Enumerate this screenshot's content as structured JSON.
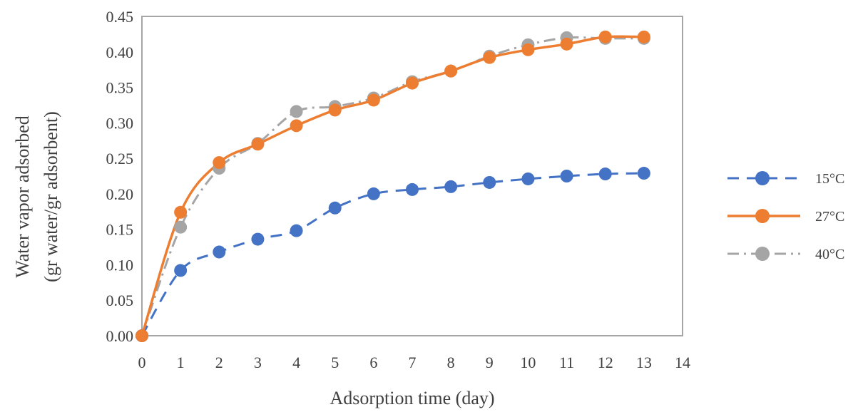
{
  "chart_data": {
    "type": "line",
    "xlabel": "Adsorption time (day)",
    "ylabel_lines": [
      "Water vapor adsorbed",
      "(gr water/gr adsorbent)"
    ],
    "xlim": [
      0,
      14
    ],
    "ylim": [
      0,
      0.45
    ],
    "x_ticks": [
      "0",
      "1",
      "2",
      "3",
      "4",
      "5",
      "6",
      "7",
      "8",
      "9",
      "10",
      "11",
      "12",
      "13",
      "14"
    ],
    "y_ticks": [
      "0.00",
      "0.05",
      "0.10",
      "0.15",
      "0.20",
      "0.25",
      "0.30",
      "0.35",
      "0.40",
      "0.45"
    ],
    "grid": false,
    "legend_position": "right",
    "x": [
      0,
      1,
      2,
      3,
      4,
      5,
      6,
      7,
      8,
      9,
      10,
      11,
      12,
      13
    ],
    "series": [
      {
        "name": "15°C",
        "color": "#4472C4",
        "line_style": "dashed",
        "values": [
          0.0,
          0.092,
          0.118,
          0.136,
          0.148,
          0.18,
          0.2,
          0.206,
          0.21,
          0.216,
          0.221,
          0.225,
          0.228,
          0.229
        ]
      },
      {
        "name": "27°C",
        "color": "#ED7D31",
        "line_style": "solid",
        "values": [
          0.0,
          0.174,
          0.244,
          0.27,
          0.296,
          0.318,
          0.332,
          0.356,
          0.373,
          0.392,
          0.403,
          0.411,
          0.421,
          0.421
        ]
      },
      {
        "name": "40°C",
        "color": "#A5A5A5",
        "line_style": "dash-dot",
        "values": [
          0.0,
          0.153,
          0.236,
          0.271,
          0.316,
          0.323,
          0.335,
          0.358,
          0.373,
          0.394,
          0.41,
          0.42,
          0.419,
          0.419
        ]
      }
    ]
  }
}
